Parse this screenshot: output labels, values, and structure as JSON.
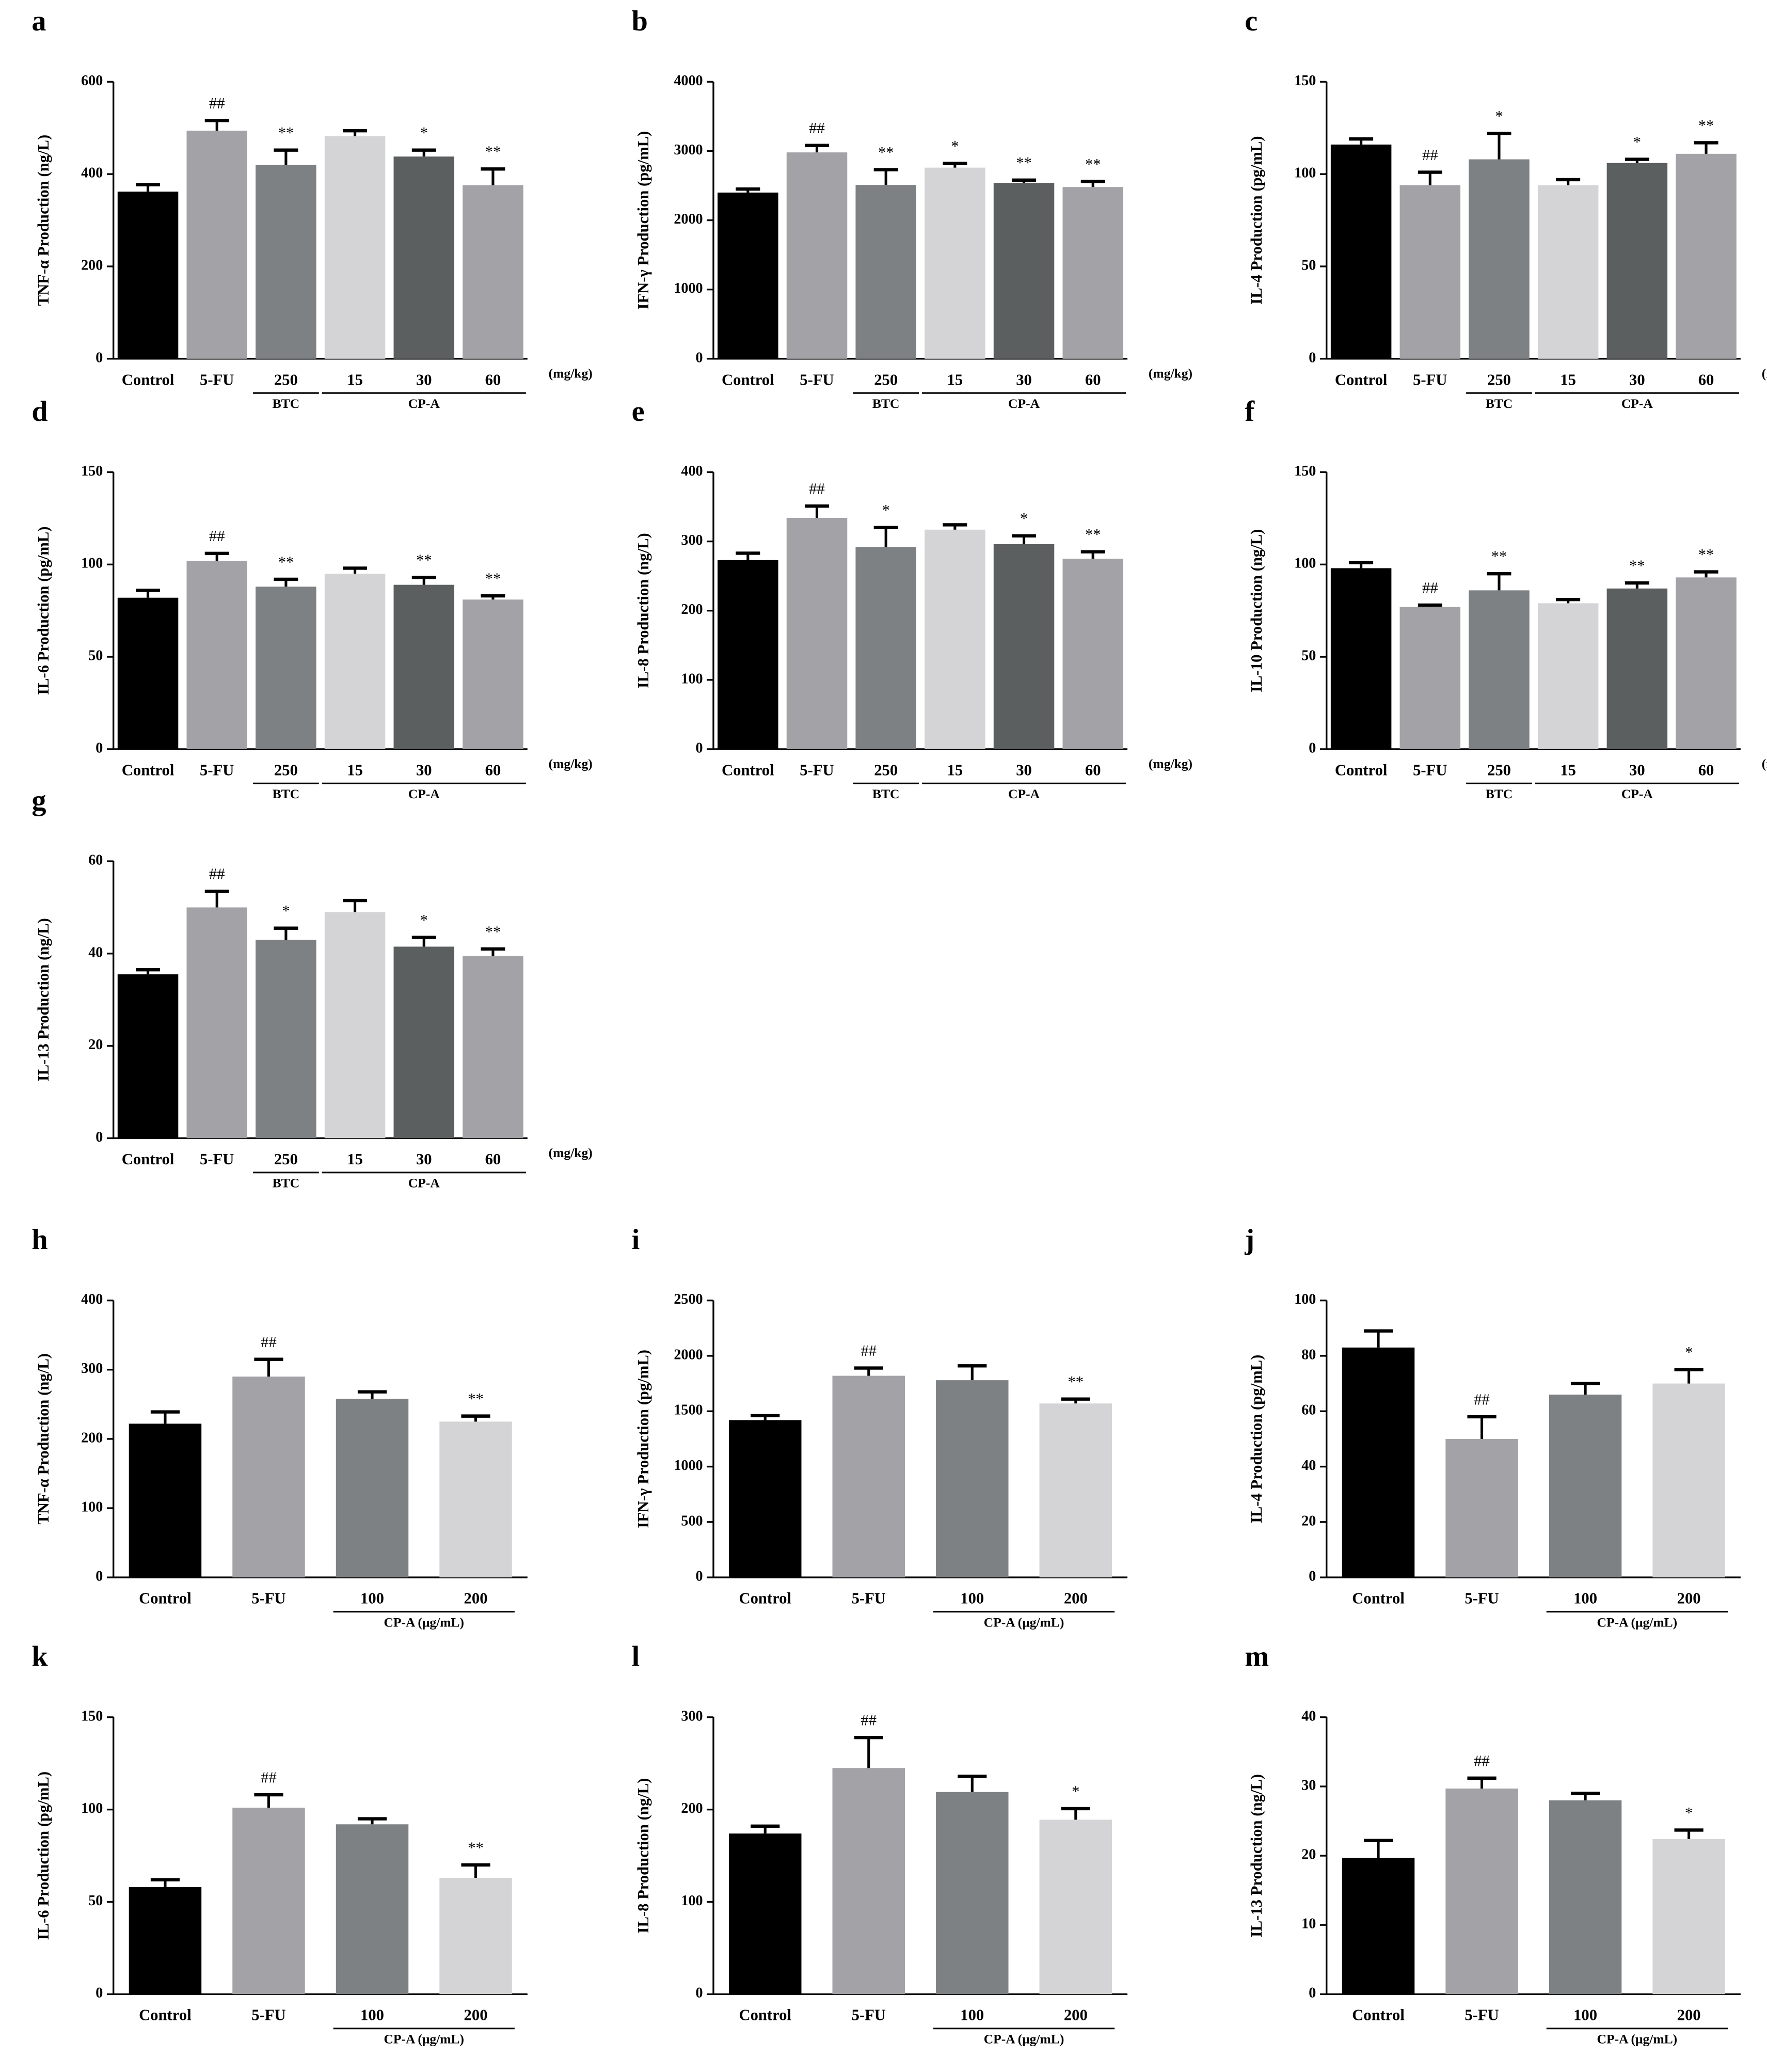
{
  "chart_data": [
    {
      "type": "bar",
      "panel": "a",
      "ylabel": "TNF-α Production (ng/L)",
      "categories": [
        "Control",
        "5-FU",
        "250",
        "15",
        "30",
        "60"
      ],
      "unit": "(mg/kg)",
      "groups": [
        {
          "label": "BTC",
          "span": [
            2,
            2
          ]
        },
        {
          "label": "CP-A",
          "span": [
            3,
            5
          ]
        }
      ],
      "values": [
        362,
        494,
        420,
        482,
        438,
        376
      ],
      "errors": [
        15,
        22,
        32,
        12,
        14,
        35
      ],
      "annotations": [
        null,
        "##",
        "**",
        null,
        "*",
        "**"
      ],
      "colors": [
        "#000000",
        "#a3a2a7",
        "#7e8184",
        "#d4d4d6",
        "#5c5f5f",
        "#a3a2a7"
      ],
      "ylim": [
        0,
        600
      ],
      "yticks": [
        0,
        200,
        400,
        600
      ]
    },
    {
      "type": "bar",
      "panel": "b",
      "ylabel": "IFN-γ Production (pg/mL)",
      "categories": [
        "Control",
        "5-FU",
        "250",
        "15",
        "30",
        "60"
      ],
      "unit": "(mg/kg)",
      "groups": [
        {
          "label": "BTC",
          "span": [
            2,
            2
          ]
        },
        {
          "label": "CP-A",
          "span": [
            3,
            5
          ]
        }
      ],
      "values": [
        2400,
        2980,
        2510,
        2760,
        2540,
        2480
      ],
      "errors": [
        50,
        100,
        220,
        60,
        40,
        80
      ],
      "annotations": [
        null,
        "##",
        "**",
        "*",
        "**",
        "**"
      ],
      "colors": [
        "#000000",
        "#a3a2a7",
        "#7e8184",
        "#d4d4d6",
        "#5c5f5f",
        "#a3a2a7"
      ],
      "ylim": [
        0,
        4000
      ],
      "yticks": [
        0,
        1000,
        2000,
        3000,
        4000
      ]
    },
    {
      "type": "bar",
      "panel": "c",
      "ylabel": "IL-4 Production (pg/mL)",
      "categories": [
        "Control",
        "5-FU",
        "250",
        "15",
        "30",
        "60"
      ],
      "unit": "(mg/kg)",
      "groups": [
        {
          "label": "BTC",
          "span": [
            2,
            2
          ]
        },
        {
          "label": "CP-A",
          "span": [
            3,
            5
          ]
        }
      ],
      "values": [
        116,
        94,
        108,
        94,
        106,
        111
      ],
      "errors": [
        3,
        7,
        14,
        3,
        2,
        6
      ],
      "annotations": [
        null,
        "##",
        "*",
        null,
        "*",
        "**"
      ],
      "colors": [
        "#000000",
        "#a3a2a7",
        "#7e8184",
        "#d4d4d6",
        "#5c5f5f",
        "#a3a2a7"
      ],
      "ylim": [
        0,
        150
      ],
      "yticks": [
        0,
        50,
        100,
        150
      ]
    },
    {
      "type": "bar",
      "panel": "d",
      "ylabel": "IL-6 Production (pg/mL)",
      "categories": [
        "Control",
        "5-FU",
        "250",
        "15",
        "30",
        "60"
      ],
      "unit": "(mg/kg)",
      "groups": [
        {
          "label": "BTC",
          "span": [
            2,
            2
          ]
        },
        {
          "label": "CP-A",
          "span": [
            3,
            5
          ]
        }
      ],
      "values": [
        82,
        102,
        88,
        95,
        89,
        81
      ],
      "errors": [
        4,
        4,
        4,
        3,
        4,
        2
      ],
      "annotations": [
        null,
        "##",
        "**",
        null,
        "**",
        "**"
      ],
      "colors": [
        "#000000",
        "#a3a2a7",
        "#7e8184",
        "#d4d4d6",
        "#5c5f5f",
        "#a3a2a7"
      ],
      "ylim": [
        0,
        150
      ],
      "yticks": [
        0,
        50,
        100,
        150
      ]
    },
    {
      "type": "bar",
      "panel": "e",
      "ylabel": "IL-8 Production (ng/L)",
      "categories": [
        "Control",
        "5-FU",
        "250",
        "15",
        "30",
        "60"
      ],
      "unit": "(mg/kg)",
      "groups": [
        {
          "label": "BTC",
          "span": [
            2,
            2
          ]
        },
        {
          "label": "CP-A",
          "span": [
            3,
            5
          ]
        }
      ],
      "values": [
        273,
        334,
        292,
        317,
        296,
        275
      ],
      "errors": [
        10,
        17,
        28,
        7,
        12,
        10
      ],
      "annotations": [
        null,
        "##",
        "*",
        null,
        "*",
        "**"
      ],
      "colors": [
        "#000000",
        "#a3a2a7",
        "#7e8184",
        "#d4d4d6",
        "#5c5f5f",
        "#a3a2a7"
      ],
      "ylim": [
        0,
        400
      ],
      "yticks": [
        0,
        100,
        200,
        300,
        400
      ]
    },
    {
      "type": "bar",
      "panel": "f",
      "ylabel": "IL-10 Production (ng/L)",
      "categories": [
        "Control",
        "5-FU",
        "250",
        "15",
        "30",
        "60"
      ],
      "unit": "(mg/kg)",
      "groups": [
        {
          "label": "BTC",
          "span": [
            2,
            2
          ]
        },
        {
          "label": "CP-A",
          "span": [
            3,
            5
          ]
        }
      ],
      "values": [
        98,
        77,
        86,
        79,
        87,
        93
      ],
      "errors": [
        3,
        1,
        9,
        2,
        3,
        3
      ],
      "annotations": [
        null,
        "##",
        "**",
        null,
        "**",
        "**"
      ],
      "colors": [
        "#000000",
        "#a3a2a7",
        "#7e8184",
        "#d4d4d6",
        "#5c5f5f",
        "#a3a2a7"
      ],
      "ylim": [
        0,
        150
      ],
      "yticks": [
        0,
        50,
        100,
        150
      ]
    },
    {
      "type": "bar",
      "panel": "g",
      "ylabel": "IL-13 Production (ng/L)",
      "categories": [
        "Control",
        "5-FU",
        "250",
        "15",
        "30",
        "60"
      ],
      "unit": "(mg/kg)",
      "groups": [
        {
          "label": "BTC",
          "span": [
            2,
            2
          ]
        },
        {
          "label": "CP-A",
          "span": [
            3,
            5
          ]
        }
      ],
      "values": [
        35.5,
        50,
        43,
        49,
        41.5,
        39.5
      ],
      "errors": [
        1,
        3.5,
        2.5,
        2.5,
        2,
        1.5
      ],
      "annotations": [
        null,
        "##",
        "*",
        null,
        "*",
        "**"
      ],
      "colors": [
        "#000000",
        "#a3a2a7",
        "#7e8184",
        "#d4d4d6",
        "#5c5f5f",
        "#a3a2a7"
      ],
      "ylim": [
        0,
        60
      ],
      "yticks": [
        0,
        20,
        40,
        60
      ]
    },
    {
      "type": "bar",
      "panel": "h",
      "ylabel": "TNF-α Production (ng/L)",
      "categories": [
        "Control",
        "5-FU",
        "100",
        "200"
      ],
      "groups": [
        {
          "label": "CP-A (μg/mL)",
          "span": [
            2,
            3
          ]
        }
      ],
      "values": [
        222,
        290,
        258,
        225
      ],
      "errors": [
        17,
        25,
        10,
        8
      ],
      "annotations": [
        null,
        "##",
        null,
        "**"
      ],
      "colors": [
        "#000000",
        "#a3a2a7",
        "#7e8184",
        "#d4d4d6"
      ],
      "ylim": [
        0,
        400
      ],
      "yticks": [
        0,
        100,
        200,
        300,
        400
      ]
    },
    {
      "type": "bar",
      "panel": "i",
      "ylabel": "IFN-γ Production (pg/mL)",
      "categories": [
        "Control",
        "5-FU",
        "100",
        "200"
      ],
      "groups": [
        {
          "label": "CP-A (μg/mL)",
          "span": [
            2,
            3
          ]
        }
      ],
      "values": [
        1420,
        1820,
        1780,
        1570
      ],
      "errors": [
        40,
        70,
        130,
        40
      ],
      "annotations": [
        null,
        "##",
        null,
        "**"
      ],
      "colors": [
        "#000000",
        "#a3a2a7",
        "#7e8184",
        "#d4d4d6"
      ],
      "ylim": [
        0,
        2500
      ],
      "yticks": [
        0,
        500,
        1000,
        1500,
        2000,
        2500
      ]
    },
    {
      "type": "bar",
      "panel": "j",
      "ylabel": "IL-4 Production (pg/mL)",
      "categories": [
        "Control",
        "5-FU",
        "100",
        "200"
      ],
      "groups": [
        {
          "label": "CP-A (μg/mL)",
          "span": [
            2,
            3
          ]
        }
      ],
      "values": [
        83,
        50,
        66,
        70
      ],
      "errors": [
        6,
        8,
        4,
        5
      ],
      "annotations": [
        null,
        "##",
        null,
        "*"
      ],
      "colors": [
        "#000000",
        "#a3a2a7",
        "#7e8184",
        "#d4d4d6"
      ],
      "ylim": [
        0,
        100
      ],
      "yticks": [
        0,
        20,
        40,
        60,
        80,
        100
      ]
    },
    {
      "type": "bar",
      "panel": "k",
      "ylabel": "IL-6 Production (pg/mL)",
      "categories": [
        "Control",
        "5-FU",
        "100",
        "200"
      ],
      "groups": [
        {
          "label": "CP-A (μg/mL)",
          "span": [
            2,
            3
          ]
        }
      ],
      "values": [
        58,
        101,
        92,
        63
      ],
      "errors": [
        4,
        7,
        3,
        7
      ],
      "annotations": [
        null,
        "##",
        null,
        "**"
      ],
      "colors": [
        "#000000",
        "#a3a2a7",
        "#7e8184",
        "#d4d4d6"
      ],
      "ylim": [
        0,
        150
      ],
      "yticks": [
        0,
        50,
        100,
        150
      ]
    },
    {
      "type": "bar",
      "panel": "l",
      "ylabel": "IL-8 Production (ng/L)",
      "categories": [
        "Control",
        "5-FU",
        "100",
        "200"
      ],
      "groups": [
        {
          "label": "CP-A (μg/mL)",
          "span": [
            2,
            3
          ]
        }
      ],
      "values": [
        174,
        245,
        219,
        189
      ],
      "errors": [
        8,
        33,
        17,
        12
      ],
      "annotations": [
        null,
        "##",
        null,
        "*"
      ],
      "colors": [
        "#000000",
        "#a3a2a7",
        "#7e8184",
        "#d4d4d6"
      ],
      "ylim": [
        0,
        300
      ],
      "yticks": [
        0,
        100,
        200,
        300
      ]
    },
    {
      "type": "bar",
      "panel": "m",
      "ylabel": "IL-13 Production (ng/L)",
      "categories": [
        "Control",
        "5-FU",
        "100",
        "200"
      ],
      "groups": [
        {
          "label": "CP-A (μg/mL)",
          "span": [
            2,
            3
          ]
        }
      ],
      "values": [
        19.7,
        29.7,
        28,
        22.4
      ],
      "errors": [
        2.5,
        1.5,
        1,
        1.3
      ],
      "annotations": [
        null,
        "##",
        null,
        "*"
      ],
      "colors": [
        "#000000",
        "#a3a2a7",
        "#7e8184",
        "#d4d4d6"
      ],
      "ylim": [
        0,
        40
      ],
      "yticks": [
        0,
        10,
        20,
        30,
        40
      ]
    }
  ]
}
